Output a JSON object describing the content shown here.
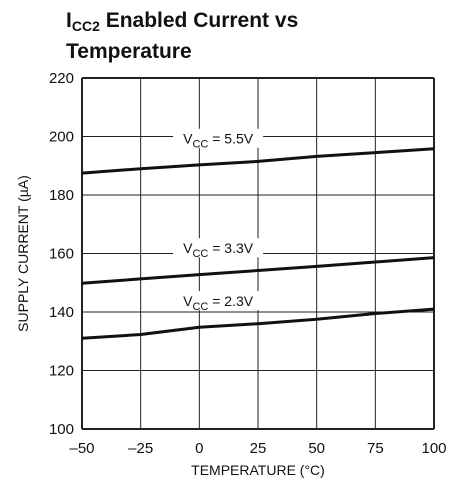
{
  "chart_data": {
    "type": "line",
    "title": {
      "main": "I",
      "subscript": "CC2",
      "line1_rest": " Enabled Current vs",
      "line2": "Temperature"
    },
    "xlabel": "TEMPERATURE (°C)",
    "ylabel": "SUPPLY CURRENT (µA)",
    "xlim": [
      -50,
      100
    ],
    "ylim": [
      100,
      220
    ],
    "xticks": [
      -50,
      -25,
      0,
      25,
      50,
      75,
      100
    ],
    "xtick_labels": [
      "–50",
      "–25",
      "0",
      "25",
      "50",
      "75",
      "100"
    ],
    "yticks": [
      100,
      120,
      140,
      160,
      180,
      200,
      220
    ],
    "grid": true,
    "series": [
      {
        "label_main": "V",
        "label_sub": "CC",
        "label_rest": " = 5.5V",
        "label_x": 8,
        "x": [
          -50,
          -25,
          0,
          25,
          50,
          75,
          100
        ],
        "y": [
          187.5,
          189.0,
          190.3,
          191.5,
          193.2,
          194.5,
          195.8
        ]
      },
      {
        "label_main": "V",
        "label_sub": "CC",
        "label_rest": " = 3.3V",
        "label_x": 8,
        "x": [
          -50,
          -25,
          0,
          25,
          50,
          75,
          100
        ],
        "y": [
          149.8,
          151.3,
          152.8,
          154.2,
          155.6,
          157.1,
          158.6
        ]
      },
      {
        "label_main": "V",
        "label_sub": "CC",
        "label_rest": " = 2.3V",
        "label_x": 8,
        "x": [
          -50,
          -25,
          0,
          25,
          50,
          75,
          100
        ],
        "y": [
          131.0,
          132.3,
          134.8,
          136.0,
          137.5,
          139.5,
          141.0
        ]
      }
    ]
  }
}
